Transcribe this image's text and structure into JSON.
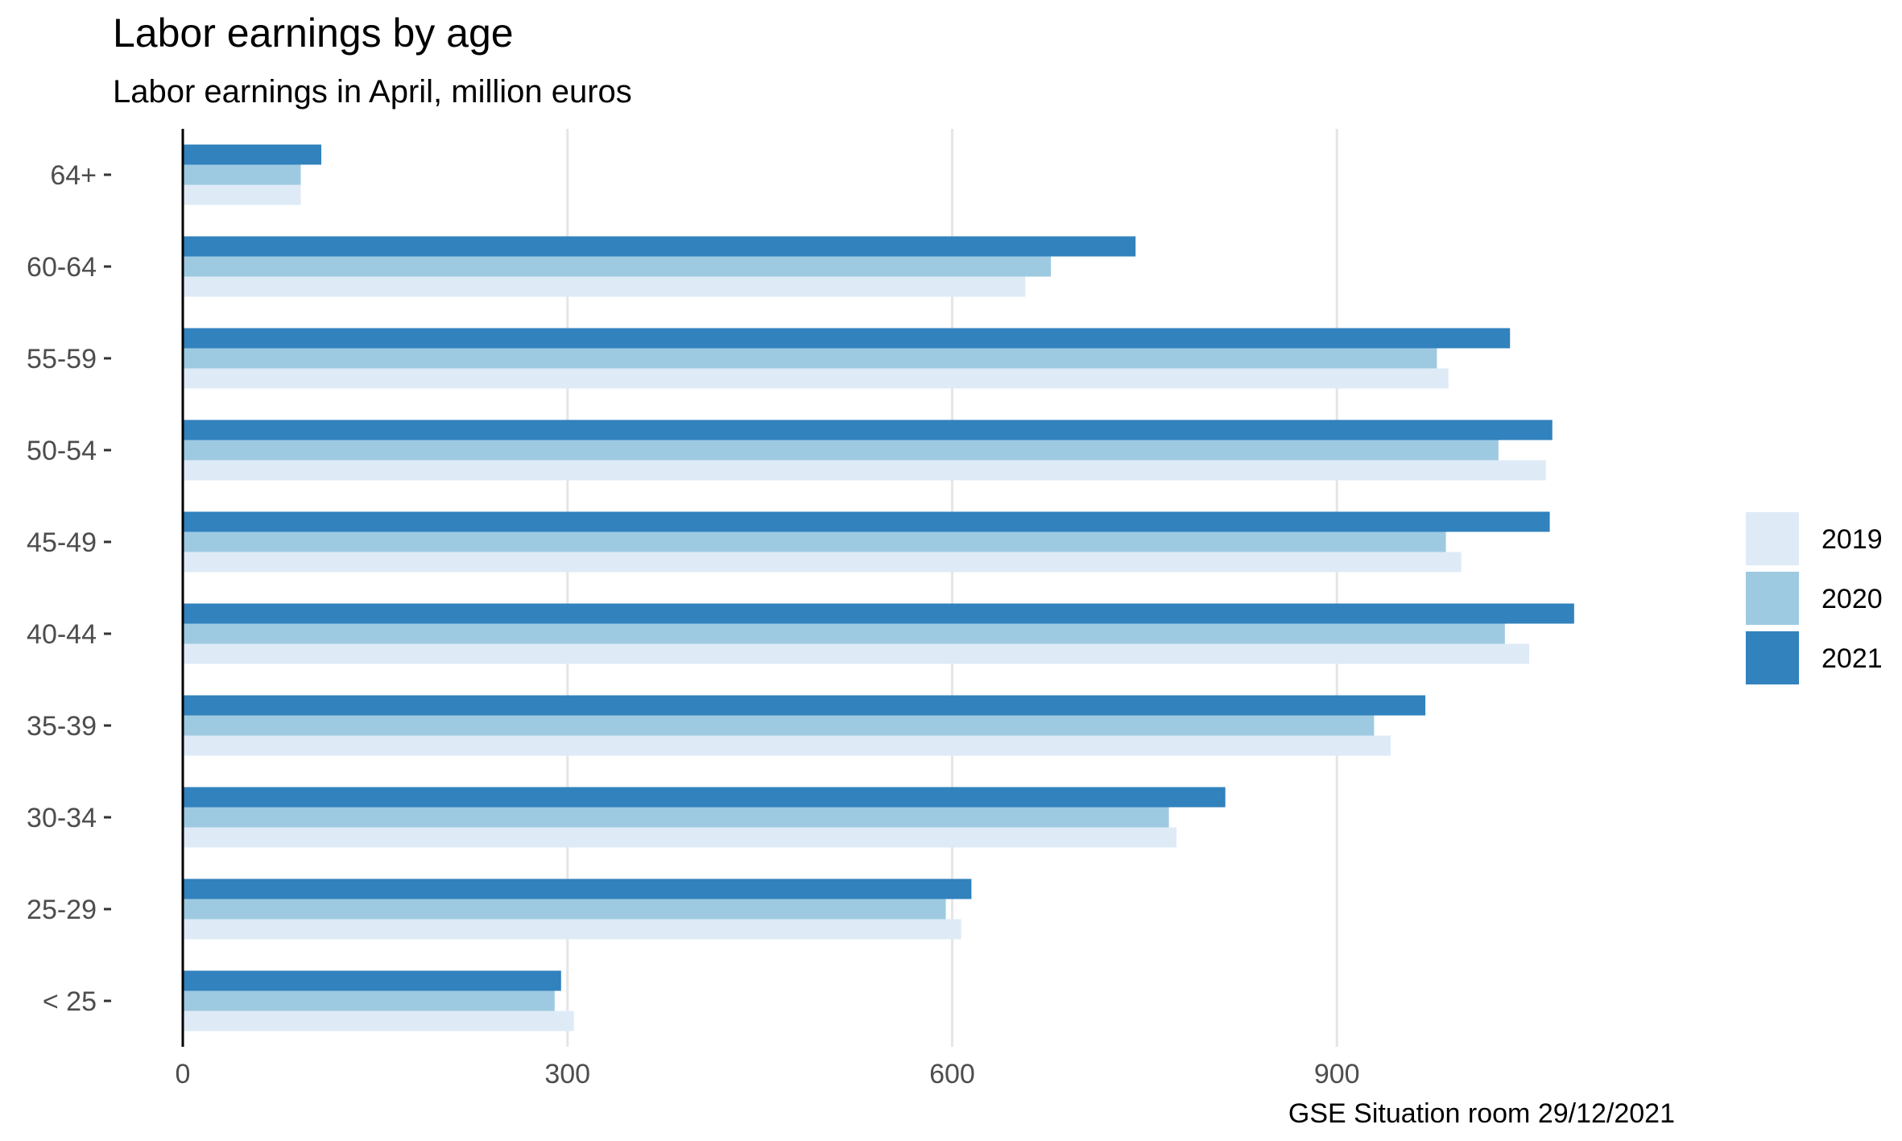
{
  "chart_data": {
    "type": "bar",
    "orientation": "horizontal",
    "title": "Labor earnings by age",
    "subtitle": "Labor earnings in April, million euros",
    "caption": "GSE Situation room 29/12/2021",
    "categories": [
      "< 25",
      "25-29",
      "30-34",
      "35-39",
      "40-44",
      "45-49",
      "50-54",
      "55-59",
      "60-64",
      "64+"
    ],
    "series": [
      {
        "name": "2019",
        "color": "#deebf7",
        "values": [
          305,
          607,
          775,
          942,
          1050,
          997,
          1063,
          987,
          657,
          92
        ]
      },
      {
        "name": "2020",
        "color": "#9ecae1",
        "values": [
          290,
          595,
          769,
          929,
          1031,
          985,
          1026,
          978,
          677,
          92
        ]
      },
      {
        "name": "2021",
        "color": "#3182bd",
        "values": [
          295,
          615,
          813,
          969,
          1085,
          1066,
          1068,
          1035,
          743,
          108
        ]
      }
    ],
    "xlim": [
      0,
      1195
    ],
    "x_ticks": [
      0,
      300,
      600,
      900
    ],
    "x_tick_labels": [
      "0",
      "300",
      "600",
      "900"
    ],
    "gridlines": true,
    "legend_position": "right"
  }
}
